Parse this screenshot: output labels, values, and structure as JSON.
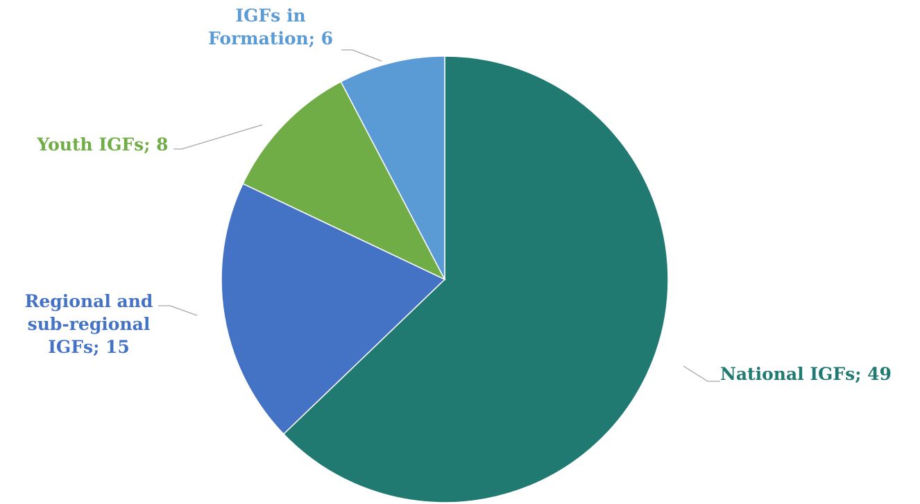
{
  "chart_data": {
    "type": "pie",
    "title": "",
    "slices": [
      {
        "label_lines": [
          "National IGFs; 49"
        ],
        "value": 49,
        "color": "#207a72"
      },
      {
        "label_lines": [
          "Regional and",
          "sub-regional",
          "IGFs; 15"
        ],
        "value": 15,
        "color": "#4472c4"
      },
      {
        "label_lines": [
          "Youth IGFs; 8"
        ],
        "value": 8,
        "color": "#70ad47"
      },
      {
        "label_lines": [
          "IGFs in",
          "Formation; 6"
        ],
        "value": 6,
        "color": "#5b9bd5"
      }
    ],
    "start": "12 o'clock",
    "direction": "clockwise",
    "legend": "none"
  }
}
